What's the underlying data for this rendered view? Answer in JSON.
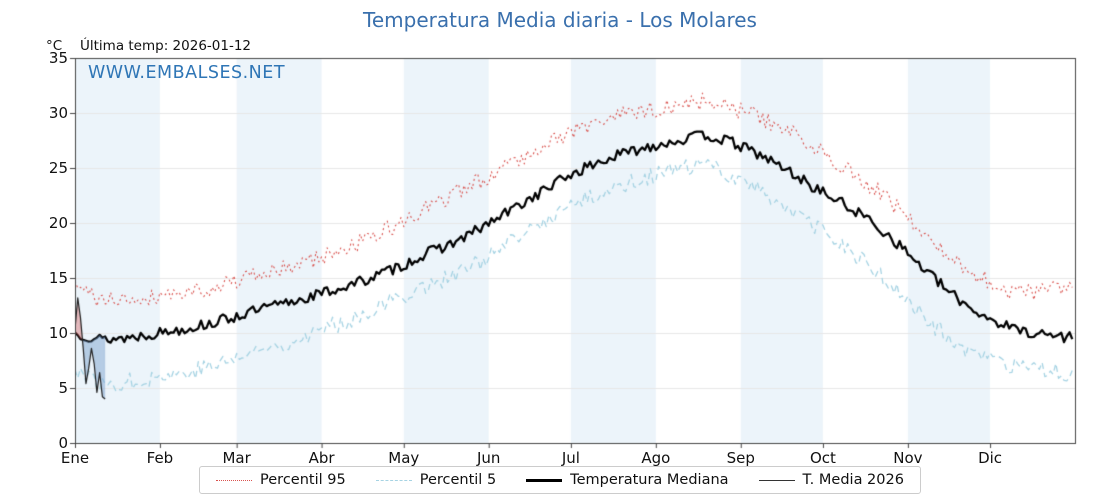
{
  "title": "Temperatura Media diaria - Los Molares",
  "unit": "°C",
  "last_temp_label": "Última temp: 2026-01-12",
  "watermark": "WWW.EMBALSES.NET",
  "colors": {
    "title": "#3a70ad",
    "watermark": "#2f76b6",
    "percentil95": "#d9534f",
    "percentil5": "#a6d3e3",
    "mediana": "#000000",
    "t_media_2026": "#222222",
    "month_band": "#ecf4fa",
    "grid": "#e7e7e7",
    "fill_above": "rgba(214,96,96,0.45)",
    "fill_below": "rgba(120,160,205,0.55)"
  },
  "chart_data": {
    "type": "line",
    "title": "Temperatura Media diaria - Los Molares",
    "xlabel": "",
    "ylabel": "°C",
    "ylim": [
      0,
      35
    ],
    "yticks": [
      0,
      5,
      10,
      15,
      20,
      25,
      30,
      35
    ],
    "x_months": [
      "Ene",
      "Feb",
      "Mar",
      "Abr",
      "May",
      "Jun",
      "Jul",
      "Ago",
      "Sep",
      "Oct",
      "Nov",
      "Dic"
    ],
    "month_start_days": [
      0,
      31,
      59,
      90,
      120,
      151,
      181,
      212,
      243,
      273,
      304,
      334
    ],
    "days_in_year": 365,
    "grid": true,
    "legend_position": "bottom",
    "sample_days_step": 10,
    "series": [
      {
        "name": "Percentil 95",
        "style": "dotted",
        "color": "#d9534f",
        "noise_amp": 0.8,
        "values": [
          14.2,
          12.9,
          13.1,
          13.4,
          13.7,
          14.2,
          14.8,
          15.4,
          16.1,
          16.9,
          17.8,
          18.9,
          20.1,
          21.5,
          22.8,
          24.2,
          25.6,
          27.0,
          28.2,
          29.1,
          29.8,
          30.2,
          30.6,
          31.2,
          30.4,
          29.6,
          28.4,
          26.9,
          25.3,
          23.5,
          21.4,
          18.9,
          16.6,
          15.1,
          13.9,
          13.6,
          14.1
        ]
      },
      {
        "name": "Percentil 5",
        "style": "dashed",
        "color": "#a6d3e3",
        "noise_amp": 0.8,
        "values": [
          6.8,
          5.2,
          5.6,
          6.0,
          6.4,
          7.0,
          7.8,
          8.6,
          9.4,
          10.3,
          11.2,
          12.3,
          13.4,
          14.5,
          15.4,
          16.8,
          18.3,
          19.9,
          21.5,
          22.5,
          23.5,
          24.3,
          24.8,
          25.3,
          24.3,
          23.0,
          21.4,
          19.6,
          18.0,
          16.1,
          13.8,
          11.4,
          9.2,
          7.8,
          7.0,
          6.6,
          6.4
        ]
      },
      {
        "name": "Temperatura Mediana",
        "style": "solid-thick",
        "color": "#000000",
        "noise_amp": 0.5,
        "values": [
          10.0,
          9.4,
          9.6,
          10.0,
          10.4,
          10.9,
          11.6,
          12.3,
          12.9,
          13.6,
          14.3,
          15.2,
          16.2,
          17.4,
          18.4,
          19.8,
          21.3,
          22.8,
          24.3,
          25.4,
          26.3,
          27.0,
          27.5,
          28.0,
          27.3,
          26.2,
          24.8,
          23.2,
          21.8,
          20.3,
          18.2,
          15.8,
          13.5,
          11.8,
          10.6,
          10.0,
          9.7
        ]
      },
      {
        "name": "T. Media 2026",
        "style": "solid-thin",
        "color": "#222222",
        "days": [
          0,
          1,
          2,
          3,
          4,
          5,
          6,
          7,
          8,
          9,
          10,
          11
        ],
        "values": [
          10.3,
          13.2,
          11.4,
          8.6,
          5.4,
          6.8,
          8.6,
          7.2,
          4.6,
          6.4,
          4.2,
          4.0
        ]
      }
    ]
  },
  "legend": {
    "items": [
      "Percentil 95",
      "Percentil 5",
      "Temperatura Mediana",
      "T. Media 2026"
    ]
  }
}
